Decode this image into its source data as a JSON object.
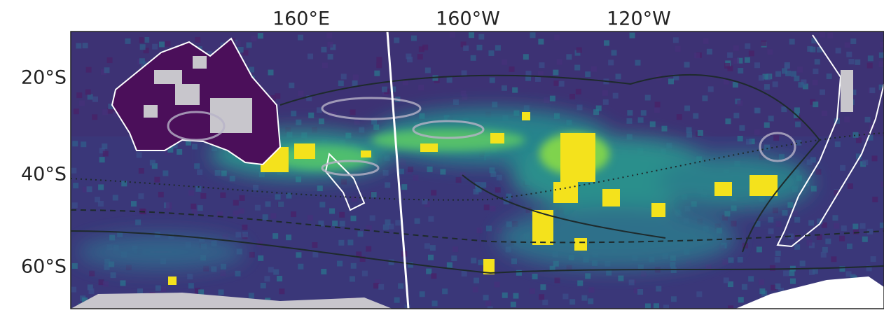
{
  "map": {
    "x_labels": [
      "160°E",
      "160°W",
      "120°W"
    ],
    "y_labels": [
      "20°S",
      "40°S",
      "60°S"
    ]
  }
}
